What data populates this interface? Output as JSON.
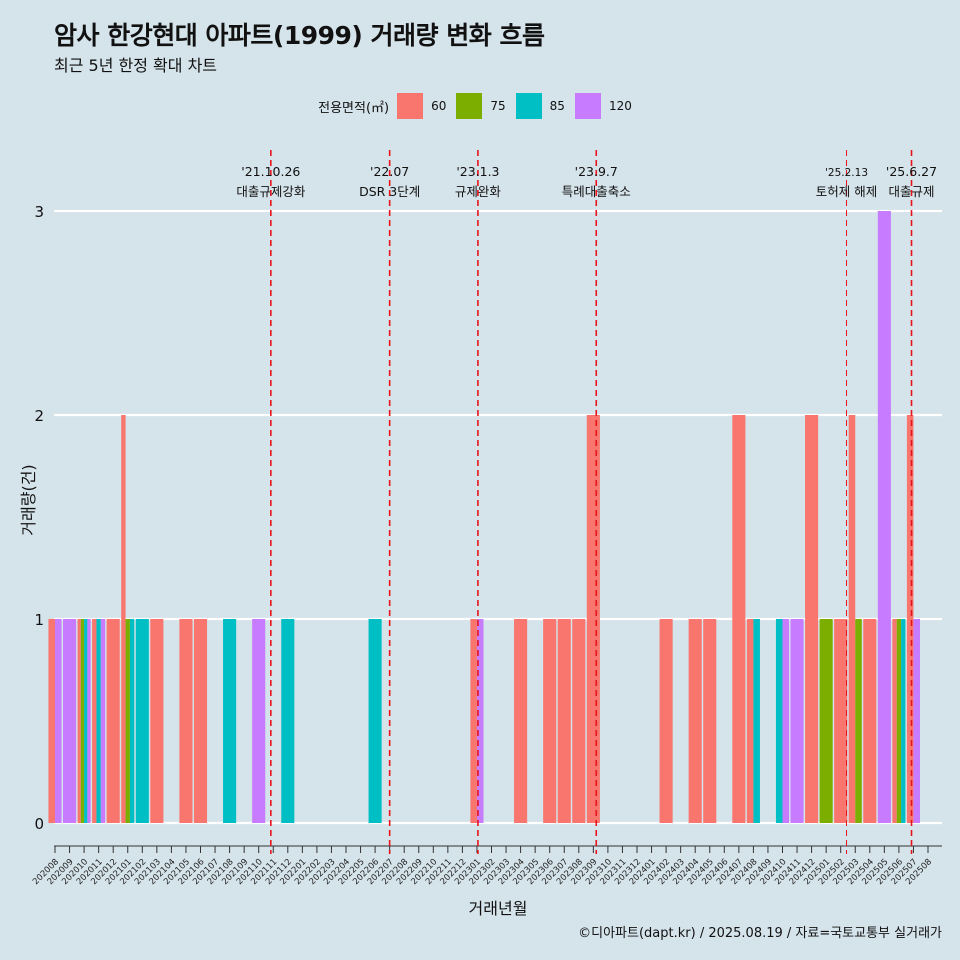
{
  "title": "암사 한강현대 아파트(1999) 거래량 변화 흐름",
  "subtitle": "최근 5년 한정 확대 차트",
  "caption": "©디아파트(dapt.kr) / 2025.08.19 / 자료=국토교통부 실거래가",
  "legend": {
    "title": "전용면적(㎡)",
    "items": [
      {
        "label": "60",
        "color": "#f8766d"
      },
      {
        "label": "75",
        "color": "#7cae00"
      },
      {
        "label": "85",
        "color": "#00bfc4"
      },
      {
        "label": "120",
        "color": "#c77cff"
      }
    ]
  },
  "chart_data": {
    "type": "bar",
    "xlabel": "거래년월",
    "ylabel": "거래량(건)",
    "ylim": [
      0,
      3
    ],
    "yticks": [
      0,
      1,
      2,
      3
    ],
    "grid": true,
    "legend_position": "top",
    "categories": [
      "202008",
      "202009",
      "202010",
      "202011",
      "202012",
      "202101",
      "202102",
      "202103",
      "202104",
      "202105",
      "202106",
      "202107",
      "202108",
      "202109",
      "202110",
      "202111",
      "202112",
      "202201",
      "202202",
      "202203",
      "202204",
      "202205",
      "202206",
      "202207",
      "202208",
      "202209",
      "202210",
      "202211",
      "202212",
      "202301",
      "202302",
      "202303",
      "202304",
      "202305",
      "202306",
      "202307",
      "202308",
      "202309",
      "202310",
      "202311",
      "202312",
      "202401",
      "202402",
      "202403",
      "202404",
      "202405",
      "202406",
      "202407",
      "202408",
      "202409",
      "202410",
      "202411",
      "202412",
      "202501",
      "202502",
      "202503",
      "202504",
      "202505",
      "202506",
      "202507",
      "202508"
    ],
    "transactions": [
      {
        "month": "202008",
        "size": "60",
        "count": 1
      },
      {
        "month": "202008",
        "size": "120",
        "count": 1
      },
      {
        "month": "202009",
        "size": "120",
        "count": 1
      },
      {
        "month": "202010",
        "size": "60",
        "count": 1
      },
      {
        "month": "202010",
        "size": "75",
        "count": 1
      },
      {
        "month": "202010",
        "size": "85",
        "count": 1
      },
      {
        "month": "202010",
        "size": "120",
        "count": 1
      },
      {
        "month": "202011",
        "size": "60",
        "count": 1
      },
      {
        "month": "202011",
        "size": "85",
        "count": 1
      },
      {
        "month": "202011",
        "size": "120",
        "count": 1
      },
      {
        "month": "202012",
        "size": "60",
        "count": 1
      },
      {
        "month": "202101",
        "size": "60",
        "count": 2
      },
      {
        "month": "202101",
        "size": "75",
        "count": 1
      },
      {
        "month": "202101",
        "size": "85",
        "count": 1
      },
      {
        "month": "202102",
        "size": "85",
        "count": 1
      },
      {
        "month": "202103",
        "size": "60",
        "count": 1
      },
      {
        "month": "202105",
        "size": "60",
        "count": 1
      },
      {
        "month": "202106",
        "size": "60",
        "count": 1
      },
      {
        "month": "202108",
        "size": "85",
        "count": 1
      },
      {
        "month": "202110",
        "size": "120",
        "count": 1
      },
      {
        "month": "202112",
        "size": "85",
        "count": 1
      },
      {
        "month": "202206",
        "size": "85",
        "count": 1
      },
      {
        "month": "202301",
        "size": "60",
        "count": 1
      },
      {
        "month": "202301",
        "size": "120",
        "count": 1
      },
      {
        "month": "202304",
        "size": "60",
        "count": 1
      },
      {
        "month": "202306",
        "size": "60",
        "count": 1
      },
      {
        "month": "202307",
        "size": "60",
        "count": 1
      },
      {
        "month": "202308",
        "size": "60",
        "count": 1
      },
      {
        "month": "202309",
        "size": "60",
        "count": 2
      },
      {
        "month": "202402",
        "size": "60",
        "count": 1
      },
      {
        "month": "202404",
        "size": "60",
        "count": 1
      },
      {
        "month": "202405",
        "size": "60",
        "count": 1
      },
      {
        "month": "202407",
        "size": "60",
        "count": 2
      },
      {
        "month": "202408",
        "size": "60",
        "count": 1
      },
      {
        "month": "202408",
        "size": "85",
        "count": 1
      },
      {
        "month": "202410",
        "size": "85",
        "count": 1
      },
      {
        "month": "202410",
        "size": "120",
        "count": 1
      },
      {
        "month": "202411",
        "size": "120",
        "count": 1
      },
      {
        "month": "202412",
        "size": "60",
        "count": 2
      },
      {
        "month": "202501",
        "size": "75",
        "count": 1
      },
      {
        "month": "202502",
        "size": "60",
        "count": 1
      },
      {
        "month": "202503",
        "size": "60",
        "count": 2
      },
      {
        "month": "202503",
        "size": "75",
        "count": 1
      },
      {
        "month": "202504",
        "size": "60",
        "count": 1
      },
      {
        "month": "202505",
        "size": "120",
        "count": 3
      },
      {
        "month": "202506",
        "size": "60",
        "count": 1
      },
      {
        "month": "202506",
        "size": "75",
        "count": 1
      },
      {
        "month": "202506",
        "size": "85",
        "count": 1
      },
      {
        "month": "202507",
        "size": "60",
        "count": 2
      },
      {
        "month": "202507",
        "size": "120",
        "count": 1
      }
    ],
    "events": [
      {
        "date": "2021-10-26",
        "label_date": "'21.10.26",
        "label": "대출규제강화",
        "style": "thick"
      },
      {
        "date": "2022-07-01",
        "label_date": "'22.07",
        "label": "DSR 3단계",
        "style": "thick"
      },
      {
        "date": "2023-01-03",
        "label_date": "'23.1.3",
        "label": "규제완화",
        "style": "thick"
      },
      {
        "date": "2023-09-07",
        "label_date": "'23.9.7",
        "label": "특례대출축소",
        "style": "thick"
      },
      {
        "date": "2025-02-13",
        "label_date": "'25.2.13",
        "label": "토허제 해제",
        "style": "thin"
      },
      {
        "date": "2025-06-27",
        "label_date": "'25.6.27",
        "label": "대출규제",
        "style": "thick"
      }
    ]
  }
}
